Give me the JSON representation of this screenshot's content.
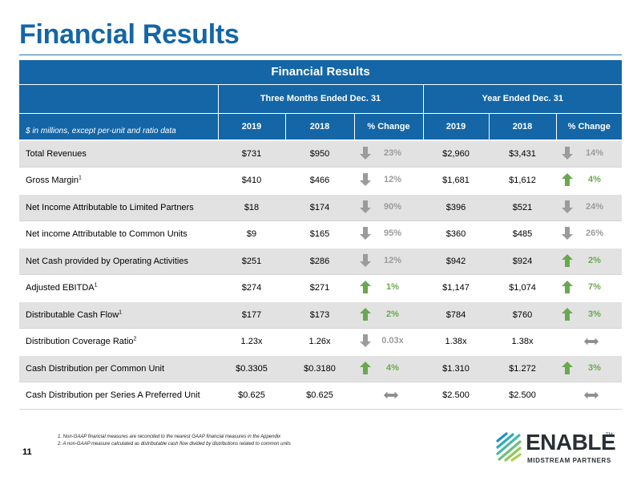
{
  "page": {
    "title": "Financial Results",
    "page_number": "11"
  },
  "table": {
    "banner": "Financial Results",
    "periods": [
      "Three Months Ended Dec. 31",
      "Year Ended Dec. 31"
    ],
    "units_note": "$ in millions, except per-unit and ratio data",
    "col_headers": [
      "2019",
      "2018",
      "% Change",
      "2019",
      "2018",
      "% Change"
    ],
    "rows": [
      {
        "label": "Total Revenues",
        "sup": "",
        "q2019": "$731",
        "q2018": "$950",
        "q_change": "23%",
        "q_dir": "down",
        "y2019": "$2,960",
        "y2018": "$3,431",
        "y_change": "14%",
        "y_dir": "down"
      },
      {
        "label": "Gross Margin",
        "sup": "1",
        "q2019": "$410",
        "q2018": "$466",
        "q_change": "12%",
        "q_dir": "down",
        "y2019": "$1,681",
        "y2018": "$1,612",
        "y_change": "4%",
        "y_dir": "up"
      },
      {
        "label": "Net Income Attributable to Limited Partners",
        "sup": "",
        "q2019": "$18",
        "q2018": "$174",
        "q_change": "90%",
        "q_dir": "down",
        "y2019": "$396",
        "y2018": "$521",
        "y_change": "24%",
        "y_dir": "down"
      },
      {
        "label": "Net income Attributable to Common Units",
        "sup": "",
        "q2019": "$9",
        "q2018": "$165",
        "q_change": "95%",
        "q_dir": "down",
        "y2019": "$360",
        "y2018": "$485",
        "y_change": "26%",
        "y_dir": "down"
      },
      {
        "label": "Net Cash provided by Operating Activities",
        "sup": "",
        "q2019": "$251",
        "q2018": "$286",
        "q_change": "12%",
        "q_dir": "down",
        "y2019": "$942",
        "y2018": "$924",
        "y_change": "2%",
        "y_dir": "up"
      },
      {
        "label": "Adjusted EBITDA",
        "sup": "1",
        "q2019": "$274",
        "q2018": "$271",
        "q_change": "1%",
        "q_dir": "up",
        "y2019": "$1,147",
        "y2018": "$1,074",
        "y_change": "7%",
        "y_dir": "up"
      },
      {
        "label": "Distributable Cash Flow",
        "sup": "1",
        "q2019": "$177",
        "q2018": "$173",
        "q_change": "2%",
        "q_dir": "up",
        "y2019": "$784",
        "y2018": "$760",
        "y_change": "3%",
        "y_dir": "up"
      },
      {
        "label": "Distribution Coverage Ratio",
        "sup": "2",
        "q2019": "1.23x",
        "q2018": "1.26x",
        "q_change": "0.03x",
        "q_dir": "down",
        "y2019": "1.38x",
        "y2018": "1.38x",
        "y_change": "",
        "y_dir": "flat"
      },
      {
        "label": "Cash Distribution per Common Unit",
        "sup": "",
        "q2019": "$0.3305",
        "q2018": "$0.3180",
        "q_change": "4%",
        "q_dir": "up",
        "y2019": "$1.310",
        "y2018": "$1.272",
        "y_change": "3%",
        "y_dir": "up"
      },
      {
        "label": "Cash Distribution per Series A Preferred Unit",
        "sup": "",
        "q2019": "$0.625",
        "q2018": "$0.625",
        "q_change": "",
        "q_dir": "flat",
        "y2019": "$2.500",
        "y2018": "$2.500",
        "y_change": "",
        "y_dir": "flat"
      }
    ]
  },
  "footnotes": [
    "1.  Non-GAAP financial measures are reconciled to the nearest GAAP financial measures in the Appendix",
    "2.  A non-GAAP measure calculated as distributable cash flow divided by distributions related to common units"
  ],
  "logo": {
    "word": "ENABLE",
    "tm": "TM",
    "subtitle": "MIDSTREAM PARTNERS"
  },
  "colors": {
    "primary_blue": "#1466a6",
    "up_green": "#6aa84f",
    "down_gray": "#9b9b9b",
    "flat_gray": "#8c8c8c"
  },
  "icons": {
    "up": "arrow-up-icon",
    "down": "arrow-down-icon",
    "flat": "double-arrow-icon"
  }
}
